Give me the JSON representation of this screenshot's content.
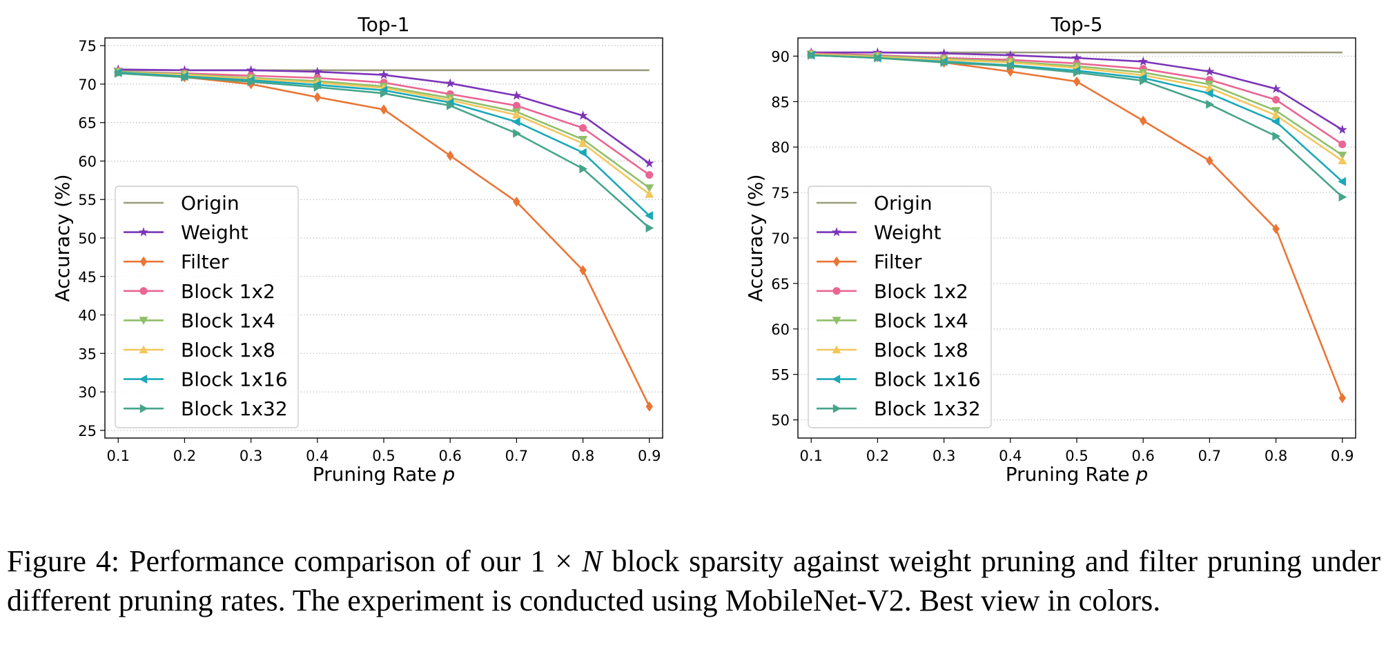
{
  "figure_label": "Figure 4:",
  "caption": {
    "part1": "Performance comparison of our",
    "math_one": "1",
    "math_times": "×",
    "math_n": "N",
    "part2": "block sparsity against weight pruning and filter pruning under different pruning rates. The experiment is conducted using MobileNet-V2. Best view in colors."
  },
  "colors": {
    "Origin": "#9b9c7b",
    "Weight": "#7b35b8",
    "Filter": "#ea7535",
    "Block 1x2": "#ea6592",
    "Block 1x4": "#8fbf6a",
    "Block 1x8": "#f2c75c",
    "Block 1x16": "#1aa8b8",
    "Block 1x32": "#45a48a"
  },
  "markers": {
    "Origin": "none",
    "Weight": "star",
    "Filter": "diamond",
    "Block 1x2": "circle",
    "Block 1x4": "triangle-down",
    "Block 1x8": "triangle-up",
    "Block 1x16": "triangle-left",
    "Block 1x32": "triangle-right"
  },
  "chart_data": [
    {
      "type": "line",
      "title": "Top-1",
      "xlabel": "Pruning Rate",
      "xlabel_var": "p",
      "ylabel": "Accuracy (%)",
      "x": [
        0.1,
        0.2,
        0.3,
        0.4,
        0.5,
        0.6,
        0.7,
        0.8,
        0.9
      ],
      "xticks": [
        "0.1",
        "0.2",
        "0.3",
        "0.4",
        "0.5",
        "0.6",
        "0.7",
        "0.8",
        "0.9"
      ],
      "xlim": [
        0.08,
        0.92
      ],
      "ylim": [
        24,
        76
      ],
      "yticks": [
        "25",
        "30",
        "35",
        "40",
        "45",
        "50",
        "55",
        "60",
        "65",
        "70",
        "75"
      ],
      "grid": "horizontal dotted",
      "legend": "lower-left",
      "series": [
        {
          "name": "Origin",
          "values": [
            71.8,
            71.8,
            71.8,
            71.8,
            71.8,
            71.8,
            71.8,
            71.8,
            71.8
          ]
        },
        {
          "name": "Weight",
          "values": [
            71.9,
            71.8,
            71.8,
            71.6,
            71.2,
            70.1,
            68.5,
            65.9,
            59.7
          ]
        },
        {
          "name": "Filter",
          "values": [
            71.6,
            70.9,
            70.0,
            68.3,
            66.7,
            60.7,
            54.7,
            45.8,
            28.1
          ]
        },
        {
          "name": "Block 1x2",
          "values": [
            71.6,
            71.4,
            71.1,
            70.8,
            70.2,
            68.7,
            67.2,
            64.3,
            58.2
          ]
        },
        {
          "name": "Block 1x4",
          "values": [
            71.6,
            71.3,
            70.8,
            70.4,
            69.7,
            68.2,
            66.4,
            62.8,
            56.5
          ]
        },
        {
          "name": "Block 1x8",
          "values": [
            71.5,
            71.2,
            70.7,
            70.2,
            69.5,
            67.9,
            66.0,
            62.3,
            55.7
          ]
        },
        {
          "name": "Block 1x16",
          "values": [
            71.5,
            71.0,
            70.5,
            69.9,
            69.2,
            67.6,
            65.1,
            61.1,
            52.9
          ]
        },
        {
          "name": "Block 1x32",
          "values": [
            71.4,
            70.9,
            70.3,
            69.6,
            68.8,
            67.2,
            63.6,
            59.0,
            51.3
          ]
        }
      ]
    },
    {
      "type": "line",
      "title": "Top-5",
      "xlabel": "Pruning Rate",
      "xlabel_var": "p",
      "ylabel": "Accuracy (%)",
      "x": [
        0.1,
        0.2,
        0.3,
        0.4,
        0.5,
        0.6,
        0.7,
        0.8,
        0.9
      ],
      "xticks": [
        "0.1",
        "0.2",
        "0.3",
        "0.4",
        "0.5",
        "0.6",
        "0.7",
        "0.8",
        "0.9"
      ],
      "xlim": [
        0.08,
        0.92
      ],
      "ylim": [
        48,
        92
      ],
      "yticks": [
        "50",
        "55",
        "60",
        "65",
        "70",
        "75",
        "80",
        "85",
        "90"
      ],
      "grid": "horizontal dotted",
      "legend": "lower-left",
      "series": [
        {
          "name": "Origin",
          "values": [
            90.4,
            90.4,
            90.4,
            90.4,
            90.4,
            90.4,
            90.4,
            90.4,
            90.4
          ]
        },
        {
          "name": "Weight",
          "values": [
            90.4,
            90.4,
            90.3,
            90.1,
            89.8,
            89.4,
            88.3,
            86.4,
            81.9
          ]
        },
        {
          "name": "Filter",
          "values": [
            90.2,
            89.9,
            89.3,
            88.3,
            87.2,
            82.9,
            78.5,
            71.0,
            52.4
          ]
        },
        {
          "name": "Block 1x2",
          "values": [
            90.3,
            90.1,
            89.8,
            89.6,
            89.2,
            88.6,
            87.4,
            85.2,
            80.3
          ]
        },
        {
          "name": "Block 1x4",
          "values": [
            90.2,
            90.0,
            89.7,
            89.4,
            88.9,
            88.2,
            86.9,
            84.0,
            79.1
          ]
        },
        {
          "name": "Block 1x8",
          "values": [
            90.2,
            89.9,
            89.6,
            89.3,
            88.7,
            87.9,
            86.5,
            83.5,
            78.5
          ]
        },
        {
          "name": "Block 1x16",
          "values": [
            90.1,
            89.8,
            89.4,
            89.0,
            88.4,
            87.6,
            85.9,
            82.8,
            76.2
          ]
        },
        {
          "name": "Block 1x32",
          "values": [
            90.1,
            89.8,
            89.3,
            88.9,
            88.2,
            87.3,
            84.7,
            81.2,
            74.5
          ]
        }
      ]
    }
  ]
}
